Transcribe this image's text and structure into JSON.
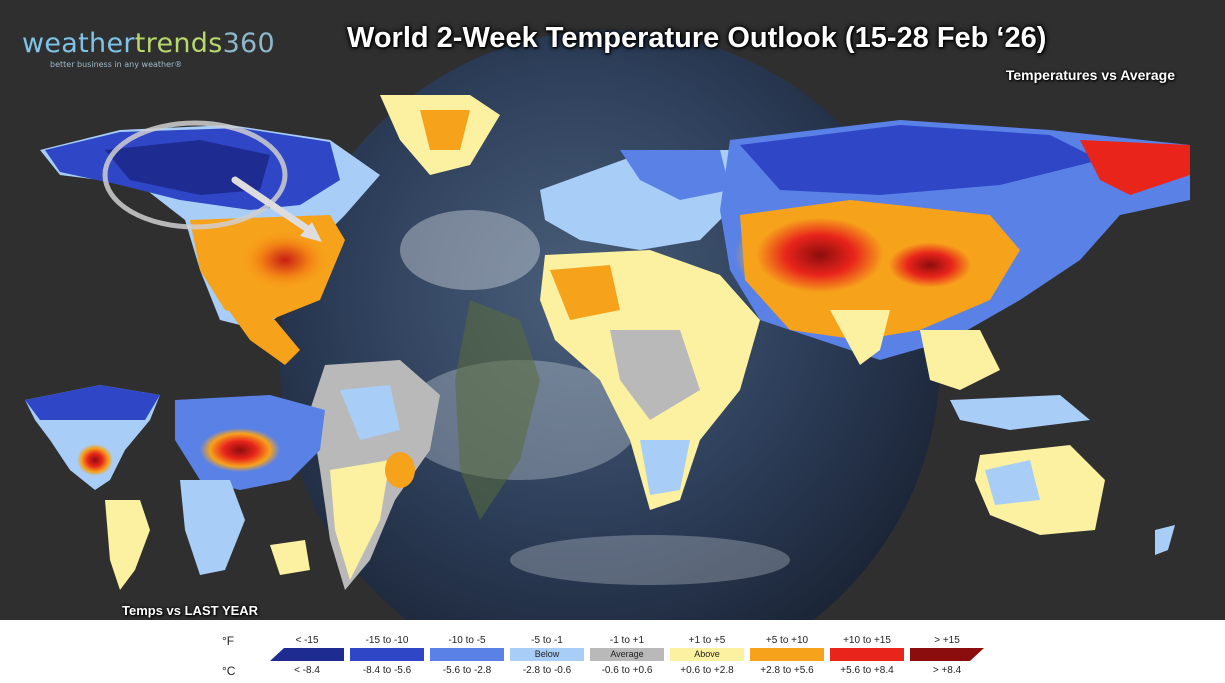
{
  "logo": {
    "weather": "weather",
    "trends": "trends",
    "number": "360",
    "tagline": "better business in any weather®"
  },
  "title": "World 2-Week Temperature Outlook (15-28 Feb ‘26)",
  "subtitle": "Temperatures vs Average",
  "inset_label": "Temps vs LAST YEAR",
  "legend": {
    "unit_f": "°F",
    "unit_c": "°C",
    "bins": [
      {
        "f": "< -15",
        "c": "< -8.4",
        "color": "#1e2b91",
        "tag": ""
      },
      {
        "f": "-15 to -10",
        "c": "-8.4 to -5.6",
        "color": "#2f47c6",
        "tag": ""
      },
      {
        "f": "-10 to -5",
        "c": "-5.6 to -2.8",
        "color": "#5a82e6",
        "tag": ""
      },
      {
        "f": "-5 to -1",
        "c": "-2.8 to -0.6",
        "color": "#a8cdf6",
        "tag": "Below"
      },
      {
        "f": "-1 to +1",
        "c": "-0.6 to +0.6",
        "color": "#b9b9b9",
        "tag": "Average"
      },
      {
        "f": "+1 to +5",
        "c": "+0.6 to +2.8",
        "color": "#fbf1a0",
        "tag": "Above"
      },
      {
        "f": "+5 to +10",
        "c": "+2.8 to +5.6",
        "color": "#f7a21b",
        "tag": ""
      },
      {
        "f": "+10 to +15",
        "c": "+5.6 to +8.4",
        "color": "#e8241b",
        "tag": ""
      },
      {
        "f": "> +15",
        "c": "> +8.4",
        "color": "#8c0d0d",
        "tag": ""
      }
    ]
  }
}
